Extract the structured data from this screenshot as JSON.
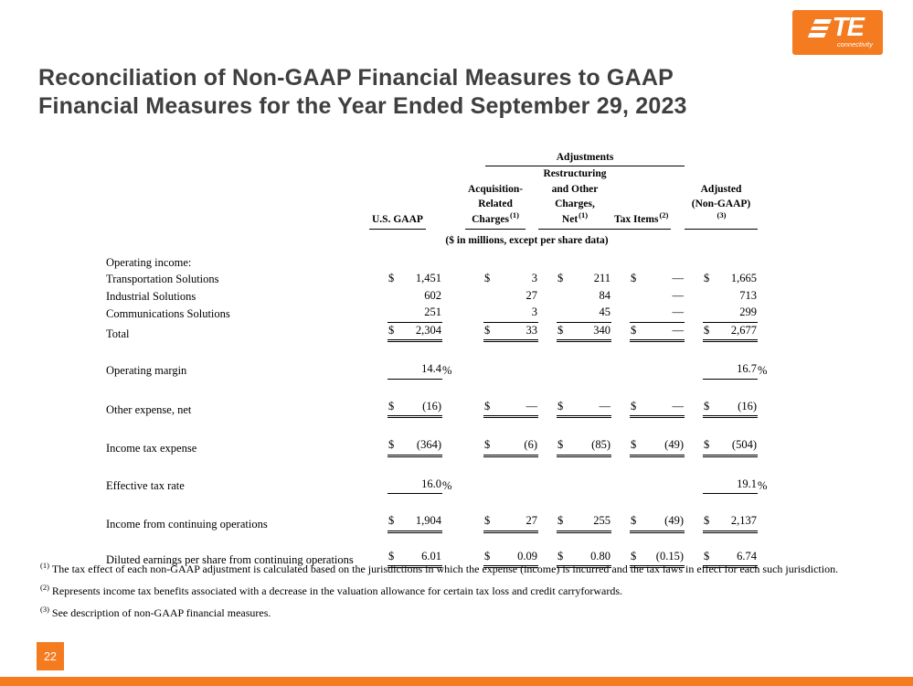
{
  "logo": {
    "brand": "TE",
    "tagline": "connectivity"
  },
  "title": {
    "line1": "Reconciliation of Non-GAAP Financial Measures to GAAP",
    "line2": "Financial Measures for the Year Ended September 29, 2023"
  },
  "table": {
    "adjustments": "Adjustments",
    "units": "($ in millions, except per share data)",
    "headers": {
      "gaap": "U.S. GAAP",
      "acq1": "Acquisition-",
      "acq2": "Related",
      "acq3": "Charges",
      "acq_sup": "(1)",
      "res1": "Restructuring",
      "res2": "and Other",
      "res3": "Charges, Net",
      "res_sup": "(1)",
      "tax": "Tax Items",
      "tax_sup": "(2)",
      "adj1": "Adjusted",
      "adj2": "(Non-GAAP)",
      "adj_sup": "(3)"
    },
    "section": "Operating income:",
    "rows": {
      "transportation": {
        "label": "Transportation Solutions",
        "d": [
          "$",
          "$",
          "$",
          "$",
          "$"
        ],
        "v": [
          "1,451",
          "3",
          "211",
          "—",
          "1,665"
        ]
      },
      "industrial": {
        "label": "Industrial Solutions",
        "d": [
          "",
          "",
          "",
          "",
          ""
        ],
        "v": [
          "602",
          "27",
          "84",
          "—",
          "713"
        ]
      },
      "communications": {
        "label": "Communications Solutions",
        "d": [
          "",
          "",
          "",
          "",
          ""
        ],
        "v": [
          "251",
          "3",
          "45",
          "—",
          "299"
        ]
      },
      "total": {
        "label": "Total",
        "d": [
          "$",
          "$",
          "$",
          "$",
          "$"
        ],
        "v": [
          "2,304",
          "33",
          "340",
          "—",
          "2,677"
        ]
      },
      "operating_margin": {
        "label": "Operating margin",
        "v0": "14.4",
        "v4": "16.7",
        "pct": "%"
      },
      "other_expense": {
        "label": "Other expense, net",
        "d": [
          "$",
          "$",
          "$",
          "$",
          "$"
        ],
        "v": [
          "(16)",
          "—",
          "—",
          "—",
          "(16)"
        ]
      },
      "income_tax": {
        "label": "Income tax expense",
        "d": [
          "$",
          "$",
          "$",
          "$",
          "$"
        ],
        "v": [
          "(364)",
          "(6)",
          "(85)",
          "(49)",
          "(504)"
        ]
      },
      "effective_tax": {
        "label": "Effective tax rate",
        "v0": "16.0",
        "v4": "19.1",
        "pct": "%"
      },
      "income_continuing": {
        "label": "Income from continuing operations",
        "d": [
          "$",
          "$",
          "$",
          "$",
          "$"
        ],
        "v": [
          "1,904",
          "27",
          "255",
          "(49)",
          "2,137"
        ]
      },
      "diluted_eps": {
        "label": "Diluted earnings per share from continuing operations",
        "d": [
          "$",
          "$",
          "$",
          "$",
          "$"
        ],
        "v": [
          "6.01",
          "0.09",
          "0.80",
          "(0.15)",
          "6.74"
        ]
      }
    }
  },
  "footnotes": [
    {
      "sup": "(1)",
      "text": "The tax effect of each non-GAAP adjustment is calculated based on the jurisdictions in which the expense (income) is incurred and the tax laws in effect for each such jurisdiction."
    },
    {
      "sup": "(2)",
      "text": "Represents income tax benefits associated with a decrease in the valuation allowance for certain tax loss and credit carryforwards."
    },
    {
      "sup": "(3)",
      "text": "See description of non-GAAP financial measures."
    }
  ],
  "footer": {
    "page": "22"
  }
}
